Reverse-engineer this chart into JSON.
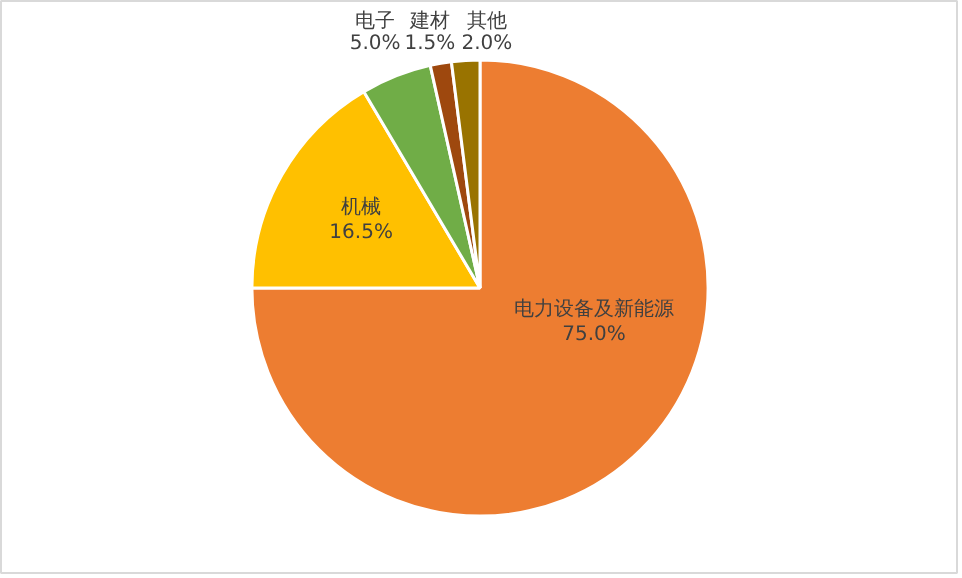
{
  "chart_data": {
    "type": "pie",
    "categories": [
      "电力设备及新能源",
      "机械",
      "电子",
      "建材",
      "其他"
    ],
    "values": [
      75.0,
      16.5,
      5.0,
      1.5,
      2.0
    ],
    "colors": [
      "#ed7d31",
      "#ffc000",
      "#70ad47",
      "#9e480e",
      "#997300"
    ],
    "value_labels": [
      "75.0%",
      "16.5%",
      "5.0%",
      "1.5%",
      "2.0%"
    ]
  }
}
